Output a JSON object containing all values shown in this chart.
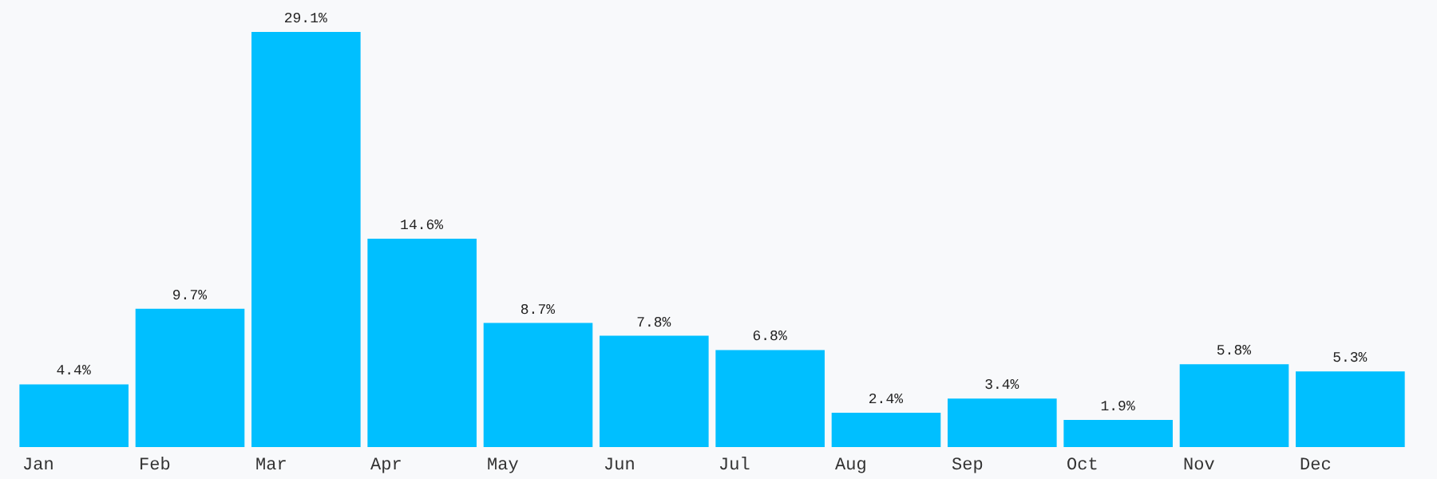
{
  "chart_data": {
    "type": "bar",
    "categories": [
      "Jan",
      "Feb",
      "Mar",
      "Apr",
      "May",
      "Jun",
      "Jul",
      "Aug",
      "Sep",
      "Oct",
      "Nov",
      "Dec"
    ],
    "values": [
      4.4,
      9.7,
      29.1,
      14.6,
      8.7,
      7.8,
      6.8,
      2.4,
      3.4,
      1.9,
      5.8,
      5.3
    ],
    "value_labels": [
      "4.4%",
      "9.7%",
      "29.1%",
      "14.6%",
      "8.7%",
      "7.8%",
      "6.8%",
      "2.4%",
      "3.4%",
      "1.9%",
      "5.8%",
      "5.3%"
    ],
    "color": "#00bfff",
    "ylim": [
      0,
      29.1
    ],
    "grid": false,
    "legend": false
  }
}
